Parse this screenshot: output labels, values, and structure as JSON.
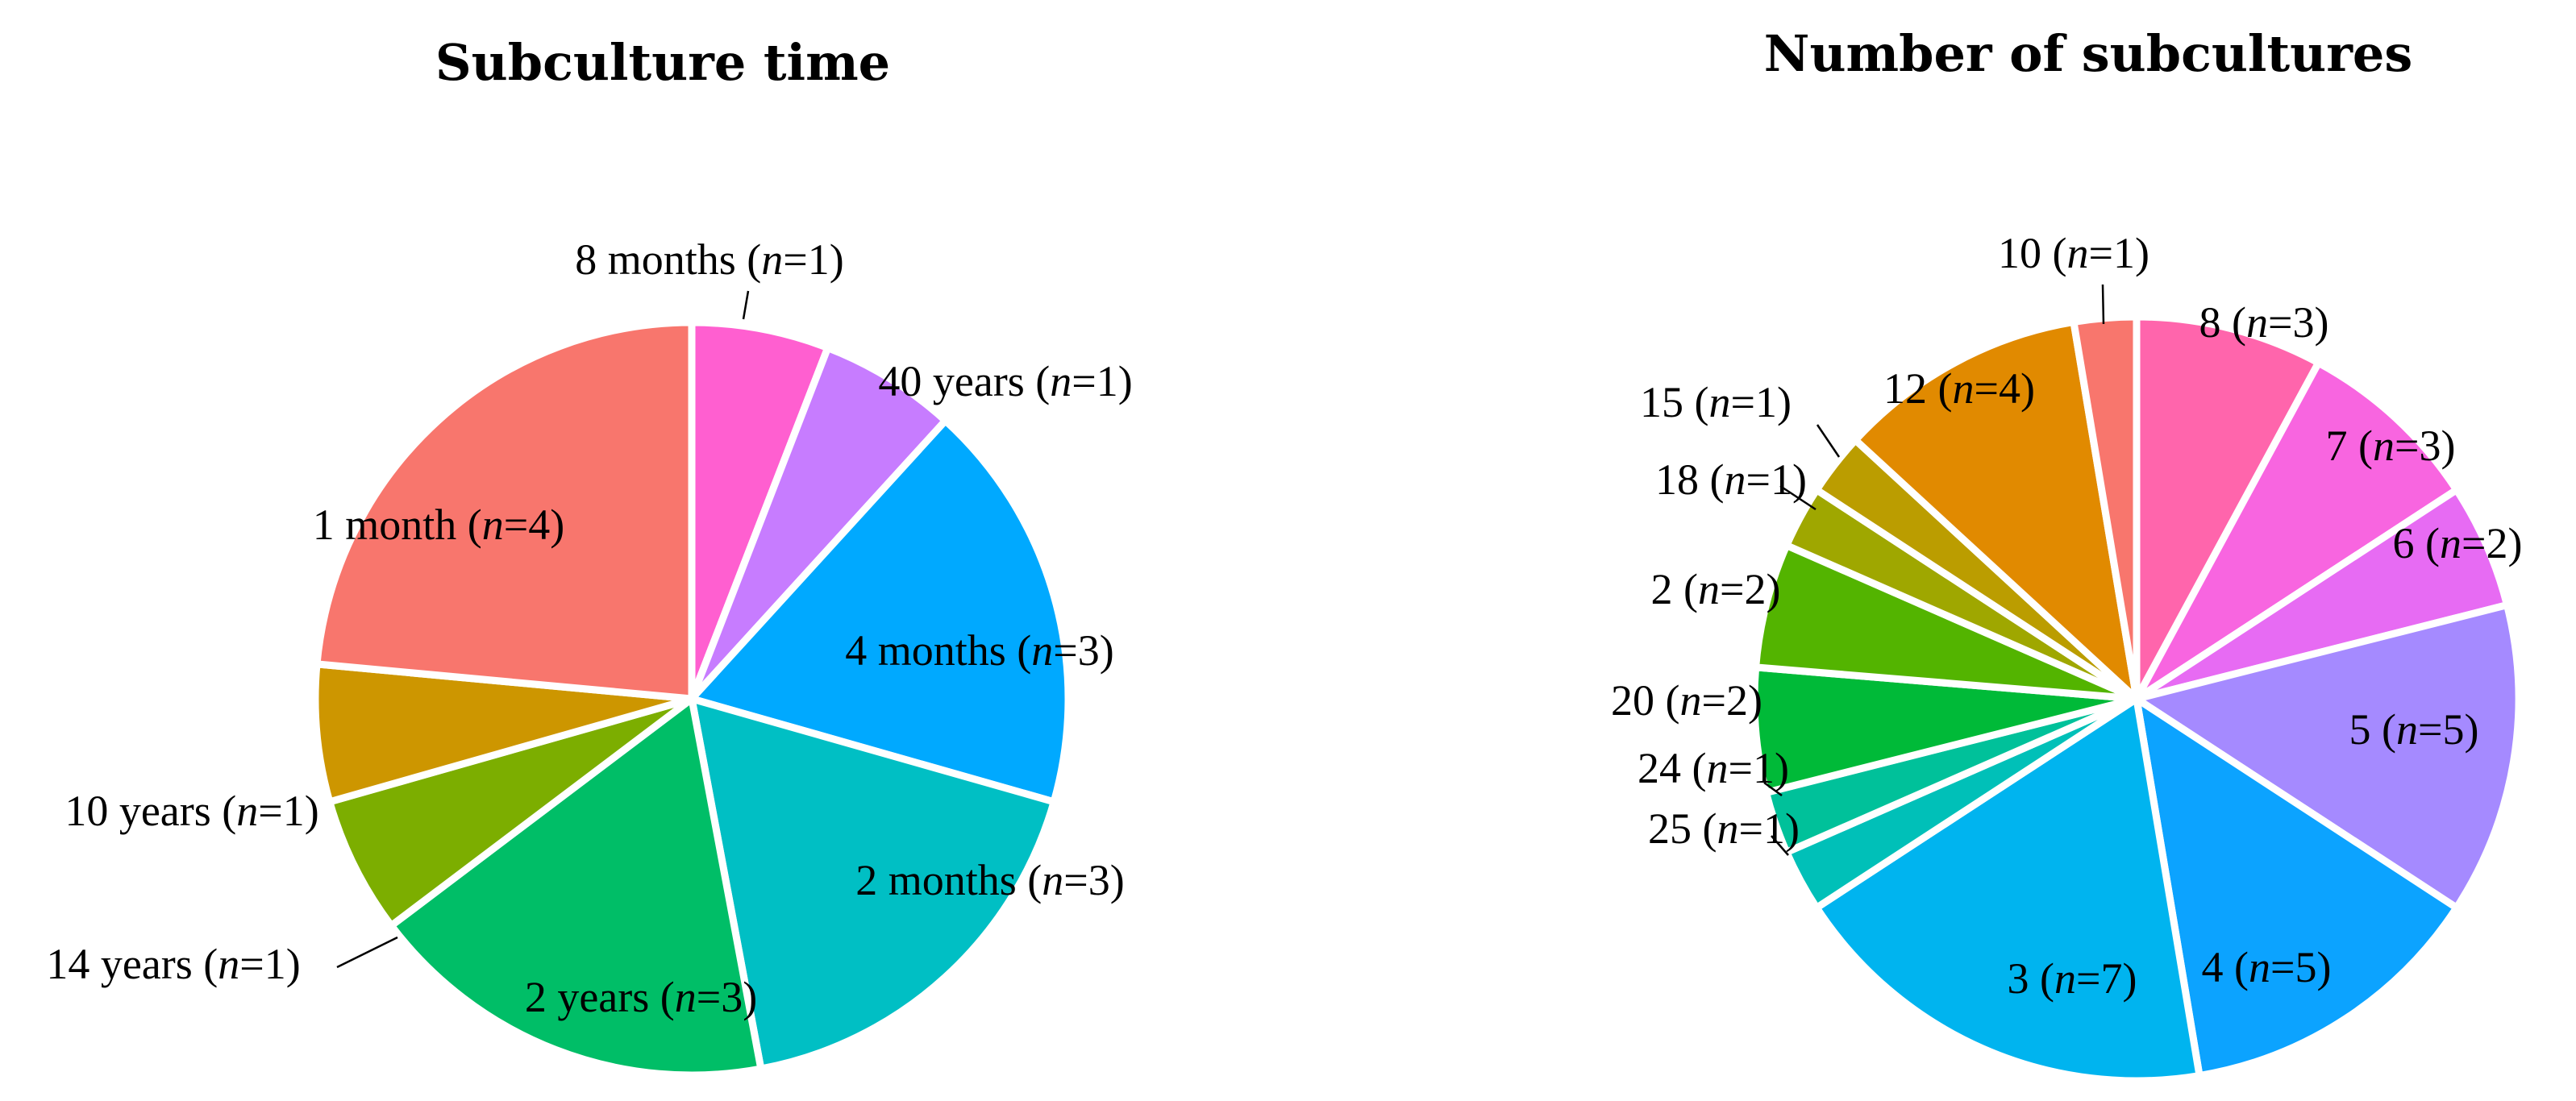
{
  "chart_data": [
    {
      "type": "pie",
      "title": "Subculture time",
      "slices": [
        {
          "label": "8 months",
          "n": 1,
          "color": "#FF5FD0"
        },
        {
          "label": "40 years",
          "n": 1,
          "color": "#C77CFF"
        },
        {
          "label": "4 months",
          "n": 3,
          "color": "#00A9FF"
        },
        {
          "label": "2 months",
          "n": 3,
          "color": "#00BFC4"
        },
        {
          "label": "2 years",
          "n": 3,
          "color": "#00BE67"
        },
        {
          "label": "14 years",
          "n": 1,
          "color": "#7CAE00"
        },
        {
          "label": "10 years",
          "n": 1,
          "color": "#CD9600"
        },
        {
          "label": "1 month",
          "n": 4,
          "color": "#F8766D"
        }
      ]
    },
    {
      "type": "pie",
      "title": "Number of subcultures",
      "slices": [
        {
          "label": "8",
          "n": 3,
          "color": "#FF65AC"
        },
        {
          "label": "7",
          "n": 3,
          "color": "#F865E0"
        },
        {
          "label": "6",
          "n": 2,
          "color": "#E76BF3"
        },
        {
          "label": "5",
          "n": 5,
          "color": "#A58AFF"
        },
        {
          "label": "4",
          "n": 5,
          "color": "#0CA3FF"
        },
        {
          "label": "3",
          "n": 7,
          "color": "#00B4EF"
        },
        {
          "label": "25",
          "n": 1,
          "color": "#00C0B8"
        },
        {
          "label": "24",
          "n": 1,
          "color": "#00C19A"
        },
        {
          "label": "20",
          "n": 2,
          "color": "#00BA38"
        },
        {
          "label": "2",
          "n": 2,
          "color": "#53B400"
        },
        {
          "label": "18",
          "n": 1,
          "color": "#9FA700"
        },
        {
          "label": "15",
          "n": 1,
          "color": "#BB9D00"
        },
        {
          "label": "12",
          "n": 4,
          "color": "#E18A00"
        },
        {
          "label": "10",
          "n": 1,
          "color": "#F8766D"
        }
      ]
    }
  ]
}
